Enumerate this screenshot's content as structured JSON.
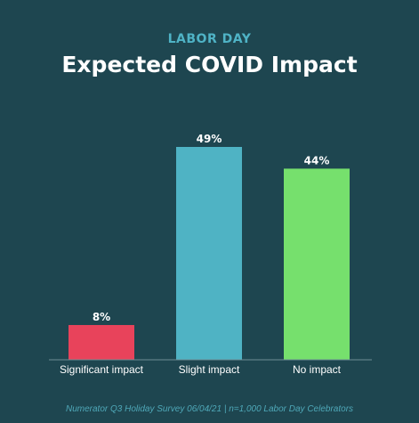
{
  "header": {
    "eyebrow": "LABOR DAY",
    "title": "Expected COVID Impact"
  },
  "footer": {
    "source": "Numerator Q3 Holiday Survey 06/04/21 | n=1,000 Labor Day Celebrators"
  },
  "chart_data": {
    "type": "bar",
    "title": "Expected COVID Impact",
    "categories": [
      "Significant impact",
      "Slight impact",
      "No impact"
    ],
    "values": [
      8,
      49,
      44
    ],
    "data_labels": [
      "8%",
      "49%",
      "44%"
    ],
    "colors": [
      "#e8435b",
      "#4fb3c4",
      "#76e06d"
    ],
    "unit": "%",
    "ylim": [
      0,
      49
    ],
    "grid": false,
    "legend": "none"
  },
  "colors": {
    "background": "#1e4650",
    "eyebrow": "#4fb3c6",
    "title": "#ffffff",
    "label": "#ffffff",
    "footer": "#4fa8b8",
    "axis": "#6f8f96"
  }
}
